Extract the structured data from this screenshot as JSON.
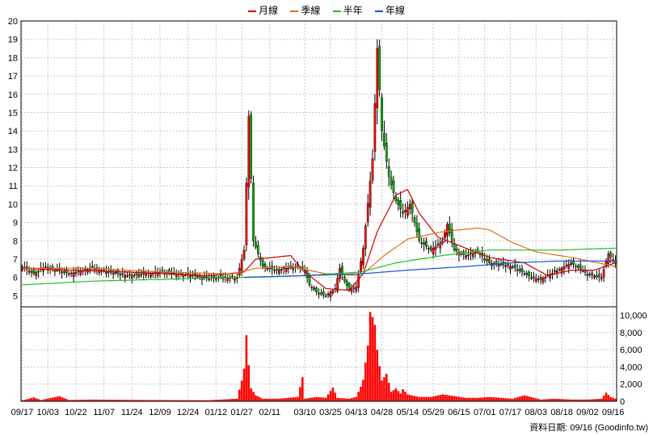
{
  "chart_data": {
    "type": "candlestick",
    "legend": [
      {
        "name": "月線",
        "color": "#cc0000"
      },
      {
        "name": "季線",
        "color": "#e07020"
      },
      {
        "name": "半年",
        "color": "#22bb22"
      },
      {
        "name": "年線",
        "color": "#1155cc"
      }
    ],
    "price_axis": {
      "ticks": [
        5,
        6,
        7,
        8,
        9,
        10,
        11,
        12,
        13,
        14,
        15,
        16,
        17,
        18,
        19,
        20
      ],
      "ylim": [
        4.4,
        20
      ]
    },
    "volume_axis": {
      "ticks": [
        "0",
        "2,000",
        "4,000",
        "6,000",
        "8,000",
        "10,000"
      ],
      "tick_values": [
        0,
        2000,
        4000,
        6000,
        8000,
        10000
      ],
      "ylim": [
        0,
        11000
      ]
    },
    "x_tick_labels": [
      "09/17",
      "10/03",
      "10/22",
      "11/07",
      "11/24",
      "12/09",
      "12/24",
      "01/12",
      "01/27",
      "02/11",
      "03/10",
      "03/25",
      "04/13",
      "04/28",
      "05/14",
      "05/29",
      "06/15",
      "07/01",
      "07/17",
      "08/03",
      "08/18",
      "09/02",
      "09/16"
    ],
    "x_tick_index": [
      0,
      11,
      23,
      35,
      47,
      59,
      71,
      83,
      94,
      106,
      121,
      132,
      143,
      154,
      165,
      176,
      187,
      198,
      209,
      220,
      231,
      242,
      253
    ],
    "num_days": 255,
    "close_anchors": [
      [
        0,
        6.6
      ],
      [
        5,
        6.2
      ],
      [
        10,
        6.6
      ],
      [
        20,
        6.2
      ],
      [
        30,
        6.5
      ],
      [
        45,
        6.1
      ],
      [
        60,
        6.3
      ],
      [
        80,
        6.0
      ],
      [
        92,
        6.0
      ],
      [
        95,
        7.5
      ],
      [
        97,
        14.8
      ],
      [
        99,
        8.0
      ],
      [
        103,
        6.6
      ],
      [
        108,
        6.4
      ],
      [
        113,
        6.5
      ],
      [
        118,
        6.6
      ],
      [
        121,
        6.4
      ],
      [
        123,
        5.6
      ],
      [
        126,
        5.2
      ],
      [
        130,
        5.0
      ],
      [
        134,
        5.4
      ],
      [
        136,
        6.5
      ],
      [
        138,
        5.8
      ],
      [
        140,
        5.3
      ],
      [
        143,
        5.5
      ],
      [
        146,
        7.6
      ],
      [
        150,
        12.5
      ],
      [
        152,
        18.5
      ],
      [
        154,
        14.0
      ],
      [
        157,
        11.5
      ],
      [
        160,
        10.2
      ],
      [
        163,
        9.5
      ],
      [
        166,
        10.0
      ],
      [
        170,
        8.0
      ],
      [
        175,
        7.5
      ],
      [
        180,
        8.0
      ],
      [
        182,
        8.9
      ],
      [
        185,
        7.5
      ],
      [
        190,
        7.2
      ],
      [
        195,
        7.4
      ],
      [
        200,
        6.8
      ],
      [
        210,
        6.6
      ],
      [
        218,
        6.0
      ],
      [
        222,
        5.9
      ],
      [
        228,
        6.3
      ],
      [
        235,
        6.8
      ],
      [
        242,
        6.2
      ],
      [
        248,
        6.0
      ],
      [
        251,
        7.3
      ],
      [
        254,
        6.8
      ]
    ],
    "series": [
      {
        "name": "月線",
        "anchors": [
          [
            0,
            6.5
          ],
          [
            20,
            6.4
          ],
          [
            45,
            6.3
          ],
          [
            80,
            6.1
          ],
          [
            95,
            6.3
          ],
          [
            100,
            7.0
          ],
          [
            115,
            7.2
          ],
          [
            120,
            6.4
          ],
          [
            130,
            5.4
          ],
          [
            140,
            5.3
          ],
          [
            146,
            6.2
          ],
          [
            152,
            8.5
          ],
          [
            160,
            10.5
          ],
          [
            165,
            10.8
          ],
          [
            170,
            9.5
          ],
          [
            178,
            8.2
          ],
          [
            190,
            7.6
          ],
          [
            200,
            7.1
          ],
          [
            215,
            6.8
          ],
          [
            225,
            6.1
          ],
          [
            235,
            6.4
          ],
          [
            245,
            6.4
          ],
          [
            254,
            6.8
          ]
        ]
      },
      {
        "name": "季線",
        "anchors": [
          [
            0,
            6.5
          ],
          [
            30,
            6.5
          ],
          [
            60,
            6.3
          ],
          [
            90,
            6.2
          ],
          [
            100,
            6.5
          ],
          [
            115,
            6.6
          ],
          [
            130,
            6.2
          ],
          [
            145,
            6.1
          ],
          [
            155,
            7.2
          ],
          [
            165,
            8.1
          ],
          [
            180,
            8.5
          ],
          [
            195,
            8.7
          ],
          [
            200,
            8.6
          ],
          [
            210,
            7.9
          ],
          [
            220,
            7.4
          ],
          [
            235,
            7.1
          ],
          [
            254,
            6.6
          ]
        ]
      },
      {
        "name": "半年",
        "anchors": [
          [
            0,
            5.6
          ],
          [
            30,
            5.8
          ],
          [
            60,
            5.9
          ],
          [
            90,
            6.0
          ],
          [
            120,
            6.1
          ],
          [
            145,
            6.3
          ],
          [
            160,
            6.8
          ],
          [
            180,
            7.2
          ],
          [
            200,
            7.5
          ],
          [
            230,
            7.5
          ],
          [
            254,
            7.6
          ]
        ]
      },
      {
        "name": "年線",
        "anchors": [
          [
            95,
            6.0
          ],
          [
            120,
            6.1
          ],
          [
            145,
            6.2
          ],
          [
            165,
            6.4
          ],
          [
            190,
            6.6
          ],
          [
            210,
            6.8
          ],
          [
            230,
            6.9
          ],
          [
            254,
            6.9
          ]
        ]
      }
    ],
    "volume_anchors": [
      [
        0,
        100
      ],
      [
        5,
        450
      ],
      [
        8,
        150
      ],
      [
        16,
        600
      ],
      [
        20,
        150
      ],
      [
        30,
        200
      ],
      [
        50,
        150
      ],
      [
        80,
        120
      ],
      [
        92,
        300
      ],
      [
        94,
        2400
      ],
      [
        95,
        3800
      ],
      [
        96,
        7700
      ],
      [
        97,
        4200
      ],
      [
        98,
        1500
      ],
      [
        100,
        700
      ],
      [
        103,
        300
      ],
      [
        110,
        300
      ],
      [
        118,
        500
      ],
      [
        120,
        2800
      ],
      [
        121,
        300
      ],
      [
        126,
        500
      ],
      [
        130,
        400
      ],
      [
        133,
        1600
      ],
      [
        135,
        400
      ],
      [
        140,
        300
      ],
      [
        143,
        500
      ],
      [
        145,
        1700
      ],
      [
        146,
        2500
      ],
      [
        148,
        6500
      ],
      [
        149,
        10400
      ],
      [
        150,
        9800
      ],
      [
        151,
        8900
      ],
      [
        152,
        6000
      ],
      [
        153,
        4100
      ],
      [
        154,
        2400
      ],
      [
        156,
        3200
      ],
      [
        158,
        1100
      ],
      [
        160,
        1500
      ],
      [
        162,
        900
      ],
      [
        163,
        1400
      ],
      [
        165,
        800
      ],
      [
        170,
        500
      ],
      [
        175,
        500
      ],
      [
        180,
        800
      ],
      [
        185,
        600
      ],
      [
        190,
        400
      ],
      [
        195,
        400
      ],
      [
        200,
        500
      ],
      [
        210,
        300
      ],
      [
        215,
        700
      ],
      [
        222,
        200
      ],
      [
        228,
        300
      ],
      [
        235,
        200
      ],
      [
        242,
        200
      ],
      [
        248,
        300
      ],
      [
        250,
        1000
      ],
      [
        252,
        500
      ],
      [
        254,
        300
      ]
    ]
  },
  "footer": {
    "date_label": "資料日期: 09/16",
    "source": "(Goodinfo.tw)"
  }
}
